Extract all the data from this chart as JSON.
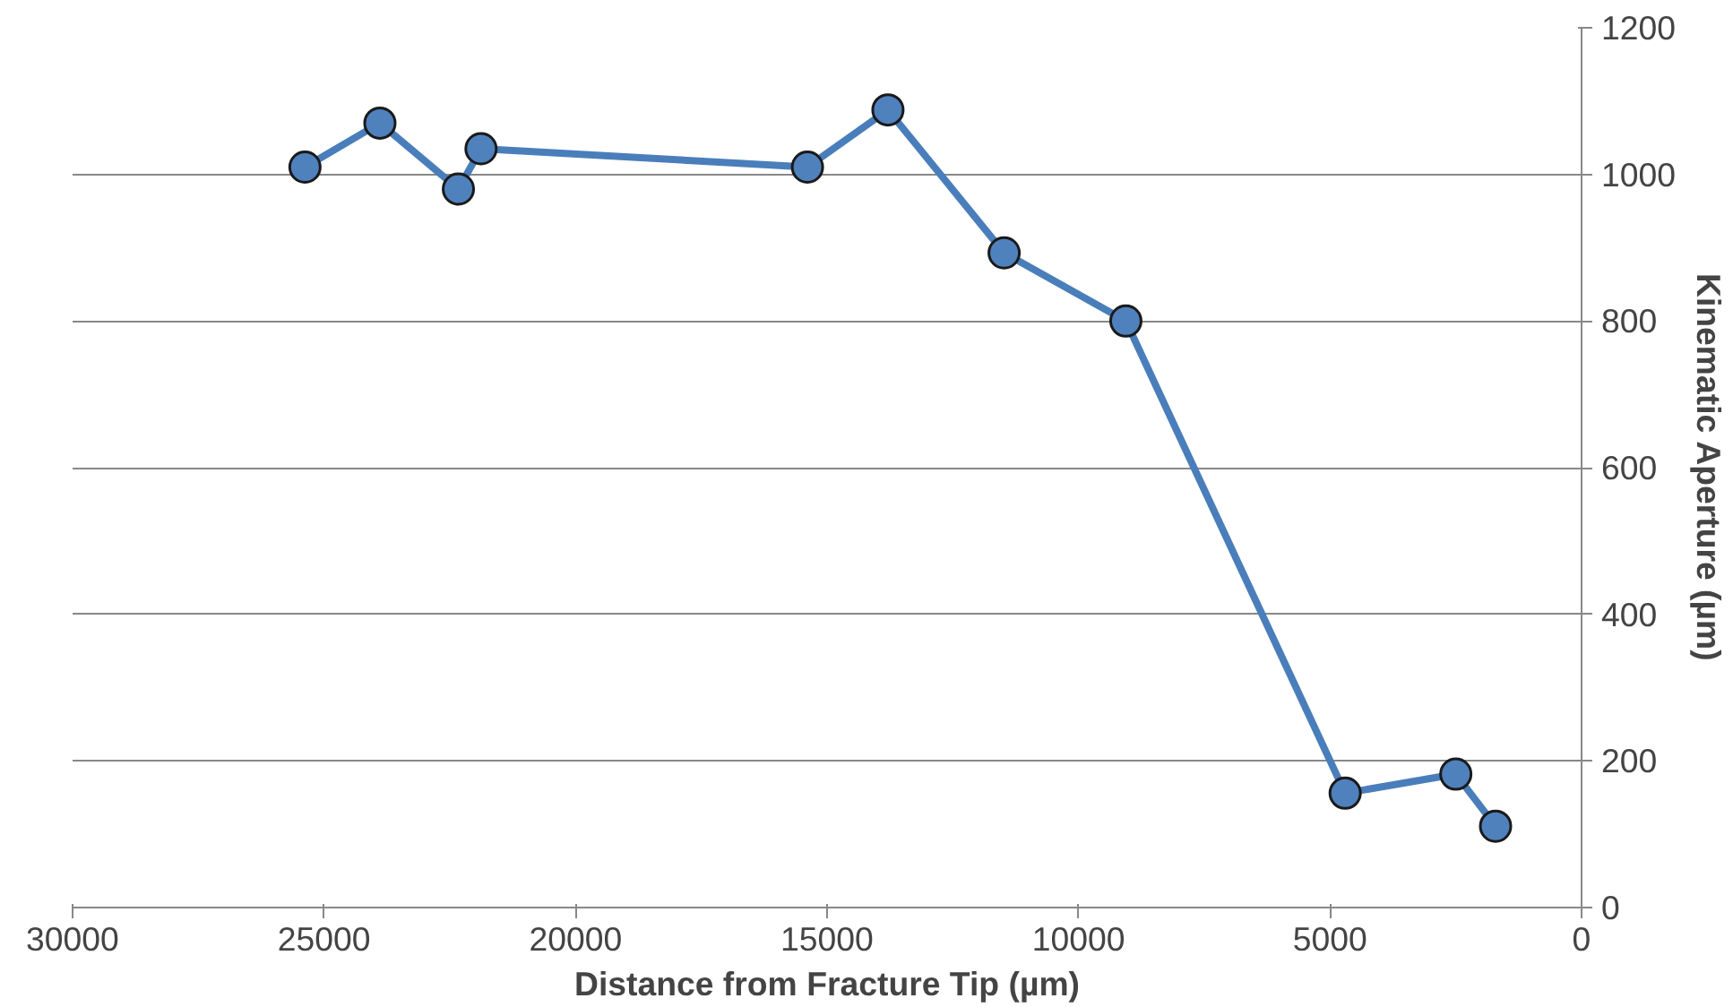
{
  "chart_data": {
    "type": "line",
    "xlabel": "Distance from Fracture Tip (µm)",
    "ylabel": "Kinematic Aperture (µm)",
    "x": [
      25380,
      23890,
      22330,
      21880,
      15390,
      13790,
      11480,
      9060,
      4700,
      2500,
      1710
    ],
    "series": [
      {
        "color": "#4a7ebb",
        "values": [
          1010,
          1070,
          980,
          1035,
          1010,
          1088,
          893,
          800,
          156,
          182,
          111
        ]
      }
    ],
    "xlim": [
      30000,
      0
    ],
    "xticks": [
      30000,
      25000,
      20000,
      15000,
      10000,
      5000,
      0
    ],
    "ylim": [
      0,
      1200
    ],
    "yticks": [
      0,
      200,
      400,
      600,
      800,
      1000,
      1200
    ],
    "grid": "y",
    "marker": "circle",
    "line_style": "solid"
  }
}
